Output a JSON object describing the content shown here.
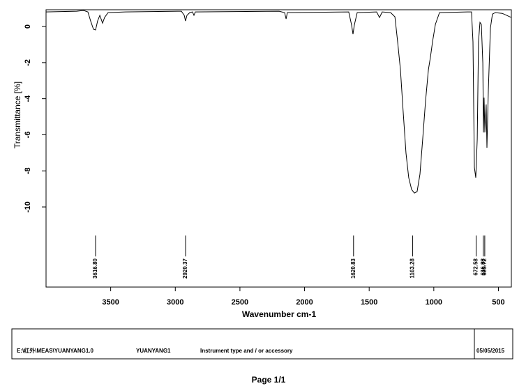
{
  "chart_data": {
    "type": "line",
    "xlabel": "Wavenumber cm-1",
    "ylabel": "Transmittance [%]",
    "xlim": [
      4000,
      400
    ],
    "ylim": [
      -14.44,
      0.93
    ],
    "xticks": [
      3500,
      3000,
      2500,
      2000,
      1500,
      1000,
      500
    ],
    "yticks": [
      0,
      -2,
      -4,
      -6,
      -8,
      -10
    ],
    "x": [
      4000,
      3763,
      3709,
      3676,
      3655,
      3633,
      3617,
      3601,
      3584,
      3563,
      3547,
      3520,
      3385,
      2953,
      2931,
      2921,
      2910,
      2888,
      2867,
      2856,
      2845,
      2197,
      2154,
      2143,
      2133,
      1658,
      1636,
      1625,
      1615,
      1593,
      1442,
      1420,
      1399,
      1334,
      1301,
      1280,
      1258,
      1237,
      1215,
      1194,
      1172,
      1150,
      1129,
      1107,
      1086,
      1064,
      1042,
      1026,
      1010,
      988,
      956,
      740,
      708,
      697,
      686,
      675,
      664,
      654,
      643,
      632,
      621,
      616,
      611,
      605,
      595,
      589,
      578,
      562,
      546,
      524,
      470,
      400
    ],
    "series": [
      {
        "color": "#000000",
        "values": [
          0.81,
          0.85,
          0.89,
          0.81,
          0.31,
          -0.15,
          -0.19,
          0.31,
          0.62,
          0.19,
          0.5,
          0.77,
          0.81,
          0.85,
          0.62,
          0.31,
          0.62,
          0.77,
          0.81,
          0.62,
          0.81,
          0.85,
          0.77,
          0.42,
          0.77,
          0.81,
          0.08,
          -0.42,
          0.08,
          0.77,
          0.81,
          0.5,
          0.81,
          0.77,
          0.54,
          -0.85,
          -2.39,
          -4.71,
          -7.03,
          -8.38,
          -9.03,
          -9.23,
          -9.15,
          -8.18,
          -6.25,
          -4.13,
          -2.39,
          -1.7,
          -0.85,
          0.12,
          0.77,
          0.81,
          0.81,
          -0.85,
          -7.8,
          -8.38,
          -6.25,
          -0.85,
          0.23,
          0.12,
          -2.01,
          -5.87,
          -3.94,
          -5.87,
          -4.32,
          -6.72,
          -3.55,
          -0.08,
          0.69,
          0.77,
          0.73,
          0.5
        ]
      }
    ],
    "peaks": [
      {
        "value": 3616.8,
        "label": "3616.80"
      },
      {
        "value": 2920.37,
        "label": "2920.37"
      },
      {
        "value": 1620.83,
        "label": "1620.83"
      },
      {
        "value": 1163.28,
        "label": "1163.28"
      },
      {
        "value": 672.58,
        "label": "672.58"
      },
      {
        "value": 616.88,
        "label": "616.88"
      },
      {
        "value": 605.72,
        "label": "605.72"
      }
    ]
  },
  "footer": {
    "path": "E:\\红外\\MEAS\\YUANYANG1.0",
    "sample": "YUANYANG1",
    "instrument": "Instrument type and / or accessory",
    "date": "05/05/2015"
  },
  "page": "Page 1/1"
}
